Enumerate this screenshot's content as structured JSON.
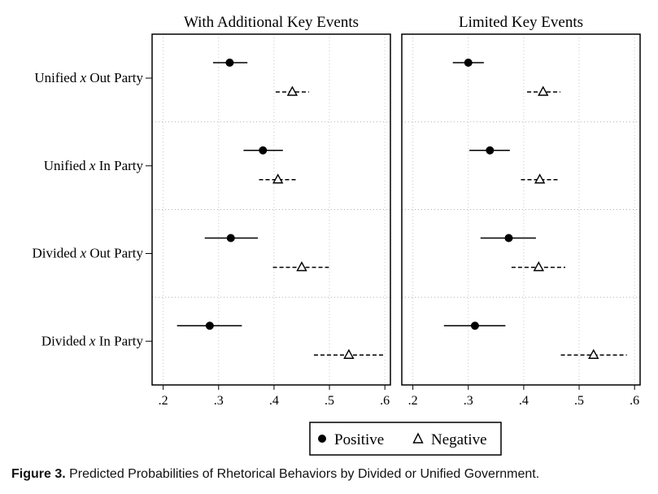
{
  "chart_data": {
    "type": "scatter",
    "panels": [
      {
        "title": "With Additional Key Events",
        "series": [
          {
            "name": "Positive",
            "points": [
              {
                "category": "Unified x Out Party",
                "estimate": 0.32,
                "ci": [
                  0.29,
                  0.352
                ]
              },
              {
                "category": "Unified x In Party",
                "estimate": 0.38,
                "ci": [
                  0.345,
                  0.416
                ]
              },
              {
                "category": "Divided x Out Party",
                "estimate": 0.322,
                "ci": [
                  0.275,
                  0.371
                ]
              },
              {
                "category": "Divided x In Party",
                "estimate": 0.284,
                "ci": [
                  0.225,
                  0.342
                ]
              }
            ]
          },
          {
            "name": "Negative",
            "points": [
              {
                "category": "Unified x Out Party",
                "estimate": 0.433,
                "ci": [
                  0.403,
                  0.463
                ]
              },
              {
                "category": "Unified x In Party",
                "estimate": 0.407,
                "ci": [
                  0.373,
                  0.443
                ]
              },
              {
                "category": "Divided x Out Party",
                "estimate": 0.45,
                "ci": [
                  0.398,
                  0.499
                ]
              },
              {
                "category": "Divided x In Party",
                "estimate": 0.535,
                "ci": [
                  0.472,
                  0.6
                ]
              }
            ]
          }
        ]
      },
      {
        "title": "Limited Key Events",
        "series": [
          {
            "name": "Positive",
            "points": [
              {
                "category": "Unified x Out Party",
                "estimate": 0.3,
                "ci": [
                  0.272,
                  0.328
                ]
              },
              {
                "category": "Unified x In Party",
                "estimate": 0.339,
                "ci": [
                  0.302,
                  0.375
                ]
              },
              {
                "category": "Divided x Out Party",
                "estimate": 0.373,
                "ci": [
                  0.322,
                  0.422
                ]
              },
              {
                "category": "Divided x In Party",
                "estimate": 0.312,
                "ci": [
                  0.256,
                  0.367
                ]
              }
            ]
          },
          {
            "name": "Negative",
            "points": [
              {
                "category": "Unified x Out Party",
                "estimate": 0.435,
                "ci": [
                  0.406,
                  0.466
                ]
              },
              {
                "category": "Unified x In Party",
                "estimate": 0.429,
                "ci": [
                  0.395,
                  0.463
                ]
              },
              {
                "category": "Divided x Out Party",
                "estimate": 0.427,
                "ci": [
                  0.378,
                  0.475
                ]
              },
              {
                "category": "Divided x In Party",
                "estimate": 0.526,
                "ci": [
                  0.467,
                  0.586
                ]
              }
            ]
          }
        ]
      }
    ],
    "categories": [
      {
        "pre": "Unified ",
        "mid": "x",
        "post": " Out Party"
      },
      {
        "pre": "Unified ",
        "mid": "x",
        "post": " In Party"
      },
      {
        "pre": "Divided ",
        "mid": "x",
        "post": " Out Party"
      },
      {
        "pre": "Divided ",
        "mid": "x",
        "post": " In Party"
      }
    ],
    "xlim": [
      0.18,
      0.61
    ],
    "xticks": [
      0.2,
      0.3,
      0.4,
      0.5,
      0.6
    ],
    "xtick_labels": [
      ".2",
      ".3",
      ".4",
      ".5",
      ".6"
    ],
    "grid": true,
    "legend_position": "bottom",
    "legend": [
      {
        "label": "Positive",
        "marker": "filled-circle"
      },
      {
        "label": "Negative",
        "marker": "hollow-triangle"
      }
    ],
    "colors": {
      "marker": "#000000",
      "grid": "#c8c8c8",
      "frame": "#000000"
    }
  },
  "caption": {
    "label": "Figure 3.",
    "text": " Predicted Probabilities of Rhetorical Behaviors by Divided or Unified Government."
  }
}
